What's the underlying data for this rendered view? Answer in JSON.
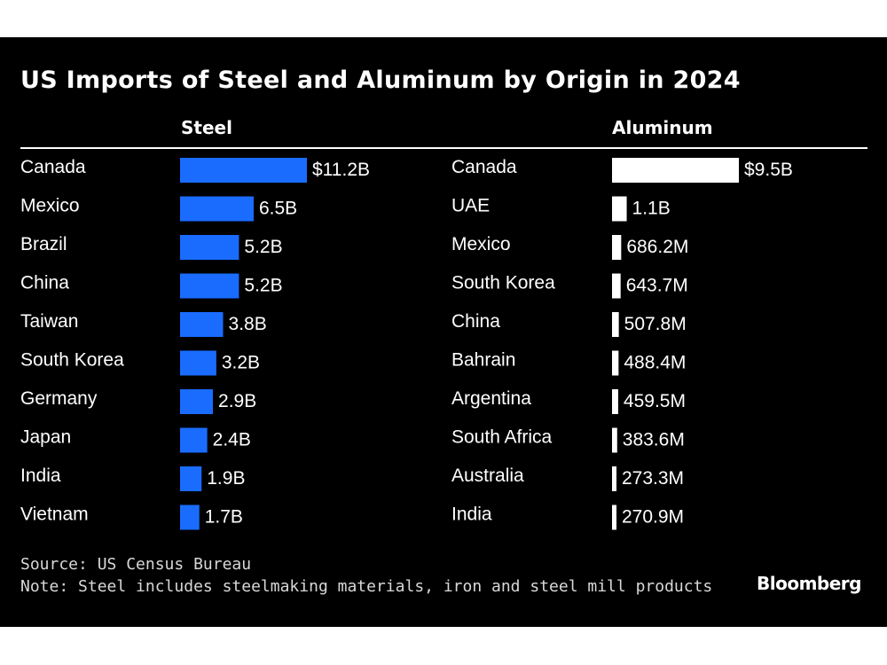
{
  "title": "US Imports of Steel and Aluminum by Origin in 2024",
  "footer": {
    "source": "Source: US Census Bureau",
    "note": "Note: Steel includes steelmaking materials, iron and steel mill products",
    "brand": "Bloomberg"
  },
  "colors": {
    "background": "#000000",
    "steel": "#1a6cff",
    "aluminum": "#ffffff"
  },
  "chart_data": [
    {
      "type": "bar",
      "orientation": "horizontal",
      "title": "Steel",
      "categories": [
        "Canada",
        "Mexico",
        "Brazil",
        "China",
        "Taiwan",
        "South Korea",
        "Germany",
        "Japan",
        "India",
        "Vietnam"
      ],
      "values": [
        11.2,
        6.5,
        5.2,
        5.2,
        3.8,
        3.2,
        2.9,
        2.4,
        1.9,
        1.7
      ],
      "labels": [
        "$11.2B",
        "6.5B",
        "5.2B",
        "5.2B",
        "3.8B",
        "3.2B",
        "2.9B",
        "2.4B",
        "1.9B",
        "1.7B"
      ],
      "unit": "USD billions",
      "xlim": [
        0,
        11.2
      ],
      "grid": false,
      "color": "#1a6cff"
    },
    {
      "type": "bar",
      "orientation": "horizontal",
      "title": "Aluminum",
      "categories": [
        "Canada",
        "UAE",
        "Mexico",
        "South Korea",
        "China",
        "Bahrain",
        "Argentina",
        "South Africa",
        "Australia",
        "India"
      ],
      "values": [
        9.5,
        1.1,
        0.6862,
        0.6437,
        0.5078,
        0.4884,
        0.4595,
        0.3836,
        0.2733,
        0.2709
      ],
      "labels": [
        "$9.5B",
        "1.1B",
        "686.2M",
        "643.7M",
        "507.8M",
        "488.4M",
        "459.5M",
        "383.6M",
        "273.3M",
        "270.9M"
      ],
      "unit": "USD billions",
      "xlim": [
        0,
        9.5
      ],
      "grid": false,
      "color": "#ffffff"
    }
  ]
}
